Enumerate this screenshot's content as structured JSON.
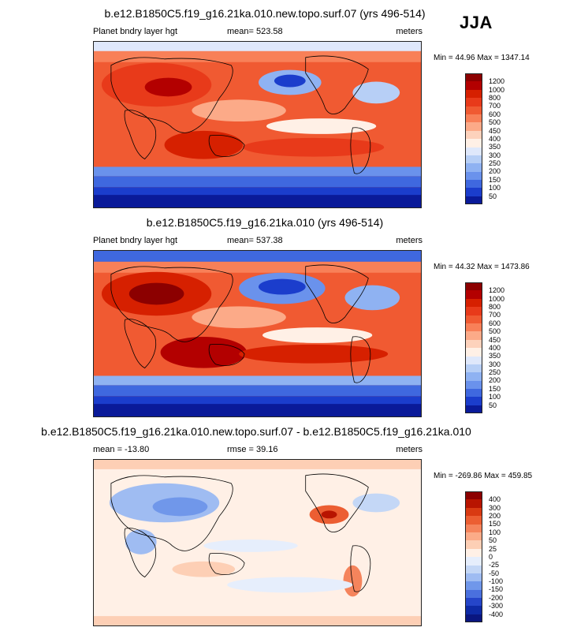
{
  "season": "JJA",
  "panels": [
    {
      "title": "b.e12.B1850C5.f19_g16.21ka.010.new.topo.surf.07 (yrs 496-514)",
      "variable": "Planet bndry layer hgt",
      "stat": "mean= 523.58",
      "units": "meters",
      "minmax": "Min =  44.96 Max = 1347.14",
      "levels": [
        "1200",
        "1000",
        "800",
        "700",
        "600",
        "500",
        "450",
        "400",
        "350",
        "300",
        "250",
        "200",
        "150",
        "100",
        "50"
      ],
      "colors": [
        "#8c0000",
        "#b30000",
        "#d62000",
        "#e83a1a",
        "#f05a32",
        "#f88058",
        "#fcaa88",
        "#fdd2bc",
        "#fff0e6",
        "#dfe8fb",
        "#b7cff6",
        "#8fb2f2",
        "#6a92ec",
        "#3f68df",
        "#1b3dcc",
        "#0a1a99"
      ]
    },
    {
      "title": "b.e12.B1850C5.f19_g16.21ka.010 (yrs 496-514)",
      "variable": "Planet bndry layer hgt",
      "stat": "mean= 537.38",
      "units": "meters",
      "minmax": "Min =  44.32 Max = 1473.86",
      "levels": [
        "1200",
        "1000",
        "800",
        "700",
        "600",
        "500",
        "450",
        "400",
        "350",
        "300",
        "250",
        "200",
        "150",
        "100",
        "50"
      ],
      "colors": [
        "#8c0000",
        "#b30000",
        "#d62000",
        "#e83a1a",
        "#f05a32",
        "#f88058",
        "#fcaa88",
        "#fdd2bc",
        "#fff0e6",
        "#dfe8fb",
        "#b7cff6",
        "#8fb2f2",
        "#6a92ec",
        "#3f68df",
        "#1b3dcc",
        "#0a1a99"
      ]
    },
    {
      "title": "b.e12.B1850C5.f19_g16.21ka.010.new.topo.surf.07 - b.e12.B1850C5.f19_g16.21ka.010",
      "variable": "mean = -13.80",
      "stat": "rmse =  39.16",
      "units": "meters",
      "minmax": "Min = -269.86 Max = 459.85",
      "levels": [
        "400",
        "300",
        "200",
        "150",
        "100",
        "50",
        "25",
        "0",
        "-25",
        "-50",
        "-100",
        "-150",
        "-200",
        "-300",
        "-400"
      ],
      "colors": [
        "#8c0000",
        "#b81400",
        "#d93a12",
        "#ec5e32",
        "#f5845c",
        "#fbab88",
        "#fdcfb5",
        "#fff0e6",
        "#e6eefc",
        "#c4d7f6",
        "#9fbcf2",
        "#7097ea",
        "#4a70de",
        "#2545c9",
        "#0e2aa6",
        "#0a1680"
      ]
    }
  ]
}
